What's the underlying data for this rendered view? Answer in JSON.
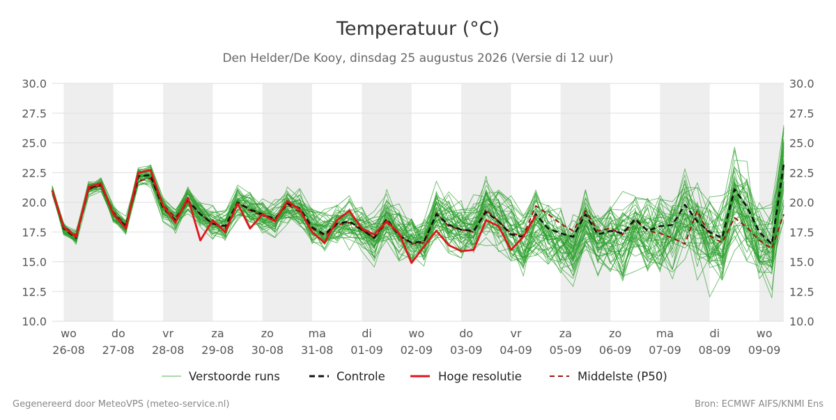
{
  "chart_data": {
    "type": "line",
    "title": "Temperatuur (°C)",
    "subtitle": "Den Helder/De Kooy, dinsdag 25 augustus 2026 (Versie di 12 uur)",
    "ylim": [
      10.0,
      30.0
    ],
    "yticks": [
      "10.0",
      "12.5",
      "15.0",
      "17.5",
      "20.0",
      "22.5",
      "25.0",
      "27.5",
      "30.0"
    ],
    "x_day_range": [
      -0.23,
      14.49
    ],
    "grid": true,
    "shaded_days": [
      0,
      2,
      4,
      6,
      8,
      10,
      12,
      14
    ],
    "day_labels": [
      {
        "weekday": "wo",
        "date": "26-08"
      },
      {
        "weekday": "do",
        "date": "27-08"
      },
      {
        "weekday": "vr",
        "date": "28-08"
      },
      {
        "weekday": "za",
        "date": "29-08"
      },
      {
        "weekday": "zo",
        "date": "30-08"
      },
      {
        "weekday": "ma",
        "date": "31-08"
      },
      {
        "weekday": "di",
        "date": "01-09"
      },
      {
        "weekday": "wo",
        "date": "02-09"
      },
      {
        "weekday": "do",
        "date": "03-09"
      },
      {
        "weekday": "vr",
        "date": "04-09"
      },
      {
        "weekday": "za",
        "date": "05-09"
      },
      {
        "weekday": "zo",
        "date": "06-09"
      },
      {
        "weekday": "ma",
        "date": "07-09"
      },
      {
        "weekday": "di",
        "date": "08-09"
      },
      {
        "weekday": "wo",
        "date": "09-09"
      }
    ],
    "x_days": [
      -0.23,
      0.0,
      0.25,
      0.5,
      0.75,
      1.0,
      1.25,
      1.5,
      1.75,
      2.0,
      2.25,
      2.5,
      2.75,
      3.0,
      3.25,
      3.5,
      3.75,
      4.0,
      4.25,
      4.5,
      4.75,
      5.0,
      5.25,
      5.5,
      5.75,
      6.0,
      6.25,
      6.5,
      6.75,
      7.0,
      7.25,
      7.5,
      7.75,
      8.0,
      8.25,
      8.5,
      8.75,
      9.0,
      9.25,
      9.5,
      9.75,
      10.0,
      10.25,
      10.5,
      10.75,
      11.0,
      11.25,
      11.5,
      11.75,
      12.0,
      12.25,
      12.5,
      12.75,
      13.0,
      13.25,
      13.5,
      13.75,
      14.0,
      14.25,
      14.49
    ],
    "legend": {
      "position": "bottom",
      "ensemble": "Verstoorde runs",
      "control": "Controle",
      "hires": "Hoge resolutie",
      "median": "Middelste (P50)"
    },
    "colors": {
      "ensemble": "#2ca02c",
      "control": "#111111",
      "hires": "#e0151a",
      "median": "#a01010",
      "shade": "#eeeeee",
      "grid": "#dddddd"
    },
    "series": [
      {
        "name": "Hoge resolutie",
        "role": "hires",
        "values": [
          21.0,
          17.9,
          17.1,
          21.3,
          21.6,
          19.0,
          17.8,
          22.5,
          22.7,
          19.7,
          18.3,
          20.4,
          16.8,
          18.5,
          17.5,
          19.9,
          17.8,
          19.0,
          18.4,
          20.1,
          19.4,
          17.5,
          16.6,
          18.5,
          19.3,
          17.8,
          17.3,
          18.4,
          17.4,
          14.9,
          16.3,
          17.6,
          16.4,
          15.9,
          16.0,
          18.5,
          18.0,
          16.0,
          17.1,
          18.9,
          null,
          null,
          null,
          null,
          null,
          null,
          null,
          null,
          null,
          null,
          null,
          null,
          null,
          null,
          null,
          null,
          null,
          null,
          null,
          null
        ]
      },
      {
        "name": "Controle",
        "role": "control",
        "values": [
          21.0,
          17.8,
          17.0,
          21.2,
          21.5,
          19.0,
          18.0,
          22.2,
          22.3,
          19.5,
          18.5,
          20.2,
          19.0,
          18.2,
          18.0,
          20.0,
          19.4,
          19.0,
          18.6,
          19.9,
          19.5,
          17.9,
          17.3,
          18.2,
          18.4,
          17.7,
          17.0,
          18.6,
          17.2,
          16.6,
          16.7,
          19.0,
          18.1,
          17.7,
          17.6,
          19.2,
          18.4,
          17.3,
          17.1,
          19.0,
          17.8,
          17.4,
          17.1,
          19.0,
          17.3,
          17.6,
          17.4,
          18.6,
          17.6,
          18.0,
          18.1,
          19.8,
          18.4,
          17.5,
          17.0,
          21.1,
          19.6,
          17.5,
          16.5,
          23.2
        ]
      },
      {
        "name": "Middelste (P50)",
        "role": "median",
        "values": [
          21.0,
          18.0,
          17.2,
          21.1,
          21.4,
          19.2,
          18.1,
          21.8,
          22.0,
          19.8,
          18.7,
          20.1,
          19.0,
          18.2,
          17.8,
          20.0,
          19.3,
          18.9,
          18.5,
          19.8,
          19.2,
          17.8,
          17.2,
          18.1,
          18.3,
          17.7,
          17.0,
          18.3,
          17.3,
          16.5,
          16.6,
          19.1,
          18.0,
          17.7,
          17.5,
          19.4,
          18.4,
          17.4,
          17.2,
          19.7,
          19.0,
          18.2,
          17.6,
          19.3,
          17.6,
          17.8,
          17.3,
          18.5,
          17.6,
          17.4,
          17.0,
          16.5,
          19.3,
          17.2,
          16.6,
          18.7,
          17.9,
          16.8,
          16.1,
          19.0
        ]
      }
    ]
  },
  "footer": {
    "left": "Gegenereerd door MeteoVPS (meteo-service.nl)",
    "right": "Bron: ECMWF AIFS/KNMI Ens"
  }
}
